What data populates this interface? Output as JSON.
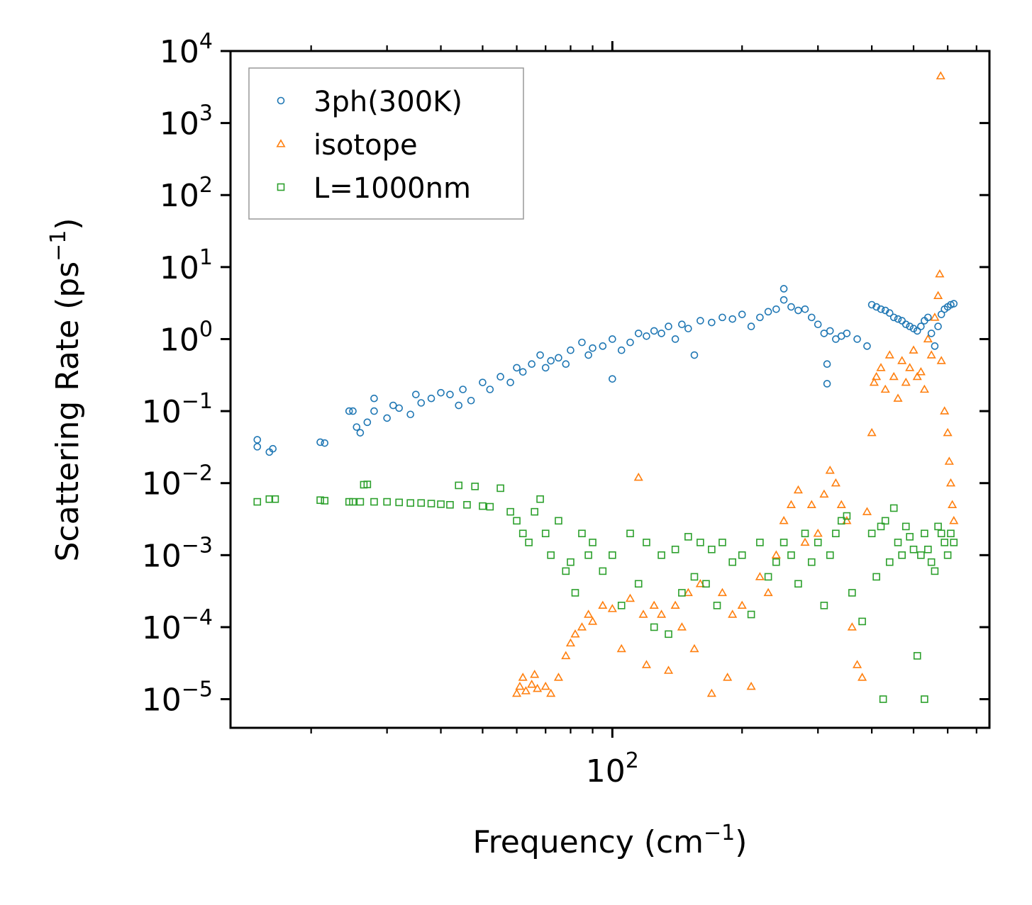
{
  "chart_data": {
    "type": "scatter",
    "xscale": "log",
    "yscale": "log",
    "xlim": [
      13,
      750
    ],
    "ylim": [
      4e-06,
      10000
    ],
    "xlabel": "Frequency (cm",
    "xlabel_sup": "−1",
    "xlabel_end": ")",
    "ylabel": "Scattering Rate (ps",
    "ylabel_sup": "−1",
    "ylabel_end": ")",
    "x_tick_labels": [
      {
        "value": 100,
        "base": "10",
        "exp": "2"
      }
    ],
    "y_tick_labels": [
      {
        "value": 10000,
        "base": "10",
        "exp": "4"
      },
      {
        "value": 1000,
        "base": "10",
        "exp": "3"
      },
      {
        "value": 100,
        "base": "10",
        "exp": "2"
      },
      {
        "value": 10,
        "base": "10",
        "exp": "1"
      },
      {
        "value": 1,
        "base": "10",
        "exp": "0"
      },
      {
        "value": 0.1,
        "base": "10",
        "exp": "−1"
      },
      {
        "value": 0.01,
        "base": "10",
        "exp": "−2"
      },
      {
        "value": 0.001,
        "base": "10",
        "exp": "−3"
      },
      {
        "value": 0.0001,
        "base": "10",
        "exp": "−4"
      },
      {
        "value": 1e-05,
        "base": "10",
        "exp": "−5"
      }
    ],
    "legend_position": "top-left",
    "series": [
      {
        "name": "3ph(300K)",
        "marker": "circle",
        "color": "#1f77b4",
        "points": [
          [
            15,
            0.04
          ],
          [
            15,
            0.032
          ],
          [
            16,
            0.027
          ],
          [
            16.3,
            0.03
          ],
          [
            21,
            0.037
          ],
          [
            21.5,
            0.036
          ],
          [
            24.5,
            0.1
          ],
          [
            25,
            0.1
          ],
          [
            25.5,
            0.06
          ],
          [
            26,
            0.05
          ],
          [
            27,
            0.07
          ],
          [
            28,
            0.15
          ],
          [
            28,
            0.1
          ],
          [
            30,
            0.08
          ],
          [
            31,
            0.12
          ],
          [
            32,
            0.11
          ],
          [
            34,
            0.09
          ],
          [
            35,
            0.17
          ],
          [
            36,
            0.13
          ],
          [
            38,
            0.15
          ],
          [
            40,
            0.18
          ],
          [
            42,
            0.17
          ],
          [
            44,
            0.12
          ],
          [
            45,
            0.2
          ],
          [
            47,
            0.14
          ],
          [
            50,
            0.25
          ],
          [
            52,
            0.2
          ],
          [
            55,
            0.3
          ],
          [
            58,
            0.25
          ],
          [
            60,
            0.4
          ],
          [
            62,
            0.35
          ],
          [
            65,
            0.45
          ],
          [
            68,
            0.6
          ],
          [
            70,
            0.4
          ],
          [
            72,
            0.5
          ],
          [
            75,
            0.55
          ],
          [
            78,
            0.45
          ],
          [
            80,
            0.7
          ],
          [
            85,
            0.9
          ],
          [
            88,
            0.6
          ],
          [
            90,
            0.75
          ],
          [
            95,
            0.8
          ],
          [
            100,
            1.0
          ],
          [
            100,
            0.28
          ],
          [
            105,
            0.7
          ],
          [
            110,
            0.9
          ],
          [
            115,
            1.2
          ],
          [
            120,
            1.1
          ],
          [
            125,
            1.3
          ],
          [
            130,
            1.2
          ],
          [
            135,
            1.5
          ],
          [
            140,
            1.0
          ],
          [
            145,
            1.6
          ],
          [
            150,
            1.4
          ],
          [
            155,
            0.6
          ],
          [
            160,
            1.8
          ],
          [
            170,
            1.7
          ],
          [
            180,
            2.0
          ],
          [
            190,
            1.9
          ],
          [
            200,
            2.2
          ],
          [
            210,
            1.5
          ],
          [
            220,
            2.0
          ],
          [
            230,
            2.4
          ],
          [
            240,
            2.6
          ],
          [
            250,
            5.0
          ],
          [
            250,
            3.5
          ],
          [
            260,
            2.8
          ],
          [
            270,
            2.5
          ],
          [
            280,
            2.6
          ],
          [
            290,
            2.0
          ],
          [
            300,
            1.6
          ],
          [
            310,
            1.2
          ],
          [
            315,
            0.45
          ],
          [
            315,
            0.24
          ],
          [
            320,
            1.3
          ],
          [
            330,
            1.0
          ],
          [
            340,
            1.1
          ],
          [
            350,
            1.2
          ],
          [
            370,
            1.0
          ],
          [
            390,
            0.8
          ],
          [
            400,
            3.0
          ],
          [
            410,
            2.8
          ],
          [
            420,
            2.6
          ],
          [
            430,
            2.5
          ],
          [
            440,
            2.3
          ],
          [
            450,
            2.0
          ],
          [
            460,
            1.9
          ],
          [
            470,
            1.8
          ],
          [
            480,
            1.6
          ],
          [
            490,
            1.5
          ],
          [
            500,
            1.4
          ],
          [
            510,
            1.3
          ],
          [
            520,
            1.5
          ],
          [
            530,
            1.8
          ],
          [
            540,
            2.0
          ],
          [
            550,
            1.2
          ],
          [
            560,
            0.8
          ],
          [
            570,
            1.5
          ],
          [
            580,
            2.2
          ],
          [
            590,
            2.6
          ],
          [
            600,
            2.8
          ],
          [
            610,
            3.0
          ],
          [
            620,
            3.1
          ]
        ]
      },
      {
        "name": "isotope",
        "marker": "triangle",
        "color": "#ff7f0e",
        "points": [
          [
            60,
            1.2e-05
          ],
          [
            61,
            1.5e-05
          ],
          [
            62,
            2e-05
          ],
          [
            63,
            1.3e-05
          ],
          [
            65,
            1.6e-05
          ],
          [
            66,
            2.2e-05
          ],
          [
            67,
            1.4e-05
          ],
          [
            70,
            1.5e-05
          ],
          [
            72,
            1.2e-05
          ],
          [
            75,
            2e-05
          ],
          [
            78,
            4e-05
          ],
          [
            80,
            6e-05
          ],
          [
            82,
            8e-05
          ],
          [
            85,
            0.0001
          ],
          [
            88,
            0.00015
          ],
          [
            90,
            0.00012
          ],
          [
            95,
            0.0002
          ],
          [
            100,
            0.00018
          ],
          [
            105,
            5e-05
          ],
          [
            110,
            0.00025
          ],
          [
            115,
            0.012
          ],
          [
            118,
            0.00015
          ],
          [
            120,
            3e-05
          ],
          [
            125,
            0.0002
          ],
          [
            130,
            0.00015
          ],
          [
            135,
            2.5e-05
          ],
          [
            140,
            0.0002
          ],
          [
            145,
            0.0001
          ],
          [
            150,
            0.0003
          ],
          [
            155,
            5e-05
          ],
          [
            160,
            0.0004
          ],
          [
            170,
            1.2e-05
          ],
          [
            180,
            0.0003
          ],
          [
            185,
            2e-05
          ],
          [
            190,
            0.00015
          ],
          [
            200,
            0.0002
          ],
          [
            210,
            1.5e-05
          ],
          [
            220,
            0.0005
          ],
          [
            230,
            0.0003
          ],
          [
            240,
            0.001
          ],
          [
            250,
            0.003
          ],
          [
            260,
            0.005
          ],
          [
            270,
            0.008
          ],
          [
            280,
            0.0015
          ],
          [
            290,
            0.005
          ],
          [
            300,
            0.002
          ],
          [
            310,
            0.007
          ],
          [
            320,
            0.015
          ],
          [
            330,
            0.01
          ],
          [
            340,
            0.005
          ],
          [
            350,
            0.003
          ],
          [
            360,
            0.0001
          ],
          [
            370,
            3e-05
          ],
          [
            380,
            2e-05
          ],
          [
            390,
            0.004
          ],
          [
            400,
            0.05
          ],
          [
            405,
            0.25
          ],
          [
            410,
            0.3
          ],
          [
            420,
            0.4
          ],
          [
            430,
            0.2
          ],
          [
            440,
            0.6
          ],
          [
            450,
            0.3
          ],
          [
            460,
            0.15
          ],
          [
            470,
            0.5
          ],
          [
            480,
            0.25
          ],
          [
            490,
            0.4
          ],
          [
            500,
            0.7
          ],
          [
            510,
            0.3
          ],
          [
            520,
            0.35
          ],
          [
            530,
            0.2
          ],
          [
            540,
            1.0
          ],
          [
            550,
            0.6
          ],
          [
            560,
            2.0
          ],
          [
            570,
            4.0
          ],
          [
            580,
            0.5
          ],
          [
            590,
            0.1
          ],
          [
            600,
            0.05
          ],
          [
            605,
            0.02
          ],
          [
            610,
            0.01
          ],
          [
            615,
            0.005
          ],
          [
            620,
            0.003
          ],
          [
            575,
            8.0
          ],
          [
            578,
            4500
          ]
        ]
      },
      {
        "name": "L=1000nm",
        "marker": "square",
        "color": "#2ca02c",
        "points": [
          [
            15,
            0.0055
          ],
          [
            16,
            0.006
          ],
          [
            16.5,
            0.006
          ],
          [
            21,
            0.0058
          ],
          [
            21.5,
            0.0057
          ],
          [
            24.5,
            0.0055
          ],
          [
            25,
            0.0055
          ],
          [
            26,
            0.0055
          ],
          [
            26.5,
            0.0095
          ],
          [
            27,
            0.0096
          ],
          [
            28,
            0.0055
          ],
          [
            30,
            0.0055
          ],
          [
            32,
            0.0054
          ],
          [
            34,
            0.0053
          ],
          [
            36,
            0.0053
          ],
          [
            38,
            0.0052
          ],
          [
            40,
            0.0051
          ],
          [
            42,
            0.005
          ],
          [
            44,
            0.0093
          ],
          [
            46,
            0.005
          ],
          [
            48,
            0.009
          ],
          [
            50,
            0.0048
          ],
          [
            52,
            0.0047
          ],
          [
            55,
            0.0085
          ],
          [
            58,
            0.004
          ],
          [
            60,
            0.003
          ],
          [
            62,
            0.002
          ],
          [
            64,
            0.0015
          ],
          [
            66,
            0.004
          ],
          [
            68,
            0.006
          ],
          [
            70,
            0.002
          ],
          [
            72,
            0.001
          ],
          [
            75,
            0.003
          ],
          [
            78,
            0.0006
          ],
          [
            80,
            0.0008
          ],
          [
            82,
            0.0003
          ],
          [
            85,
            0.002
          ],
          [
            88,
            0.001
          ],
          [
            90,
            0.0015
          ],
          [
            95,
            0.0006
          ],
          [
            100,
            0.001
          ],
          [
            105,
            0.0002
          ],
          [
            110,
            0.002
          ],
          [
            115,
            0.0004
          ],
          [
            120,
            0.0015
          ],
          [
            125,
            0.0001
          ],
          [
            130,
            0.001
          ],
          [
            135,
            8e-05
          ],
          [
            140,
            0.0012
          ],
          [
            145,
            0.0003
          ],
          [
            150,
            0.0018
          ],
          [
            155,
            0.0005
          ],
          [
            160,
            0.0015
          ],
          [
            165,
            0.0004
          ],
          [
            170,
            0.0012
          ],
          [
            175,
            0.0002
          ],
          [
            180,
            0.0015
          ],
          [
            190,
            0.0008
          ],
          [
            200,
            0.001
          ],
          [
            210,
            0.00015
          ],
          [
            220,
            0.0015
          ],
          [
            230,
            0.0005
          ],
          [
            240,
            0.0008
          ],
          [
            250,
            0.0015
          ],
          [
            260,
            0.001
          ],
          [
            270,
            0.0004
          ],
          [
            280,
            0.002
          ],
          [
            290,
            0.0008
          ],
          [
            300,
            0.0015
          ],
          [
            310,
            0.0002
          ],
          [
            320,
            0.001
          ],
          [
            330,
            0.002
          ],
          [
            340,
            0.003
          ],
          [
            350,
            0.0035
          ],
          [
            360,
            0.0003
          ],
          [
            380,
            0.00012
          ],
          [
            400,
            0.002
          ],
          [
            410,
            0.0005
          ],
          [
            420,
            0.0025
          ],
          [
            430,
            0.003
          ],
          [
            440,
            0.0008
          ],
          [
            450,
            0.0045
          ],
          [
            460,
            0.0015
          ],
          [
            470,
            0.001
          ],
          [
            480,
            0.0025
          ],
          [
            490,
            0.0018
          ],
          [
            500,
            0.0012
          ],
          [
            510,
            4e-05
          ],
          [
            520,
            0.001
          ],
          [
            530,
            0.002
          ],
          [
            540,
            0.0012
          ],
          [
            550,
            0.0008
          ],
          [
            560,
            0.0006
          ],
          [
            570,
            0.0025
          ],
          [
            580,
            0.002
          ],
          [
            590,
            0.0015
          ],
          [
            600,
            0.001
          ],
          [
            610,
            0.002
          ],
          [
            620,
            0.0015
          ],
          [
            425,
            1e-05
          ],
          [
            530,
            1e-05
          ]
        ]
      }
    ]
  }
}
